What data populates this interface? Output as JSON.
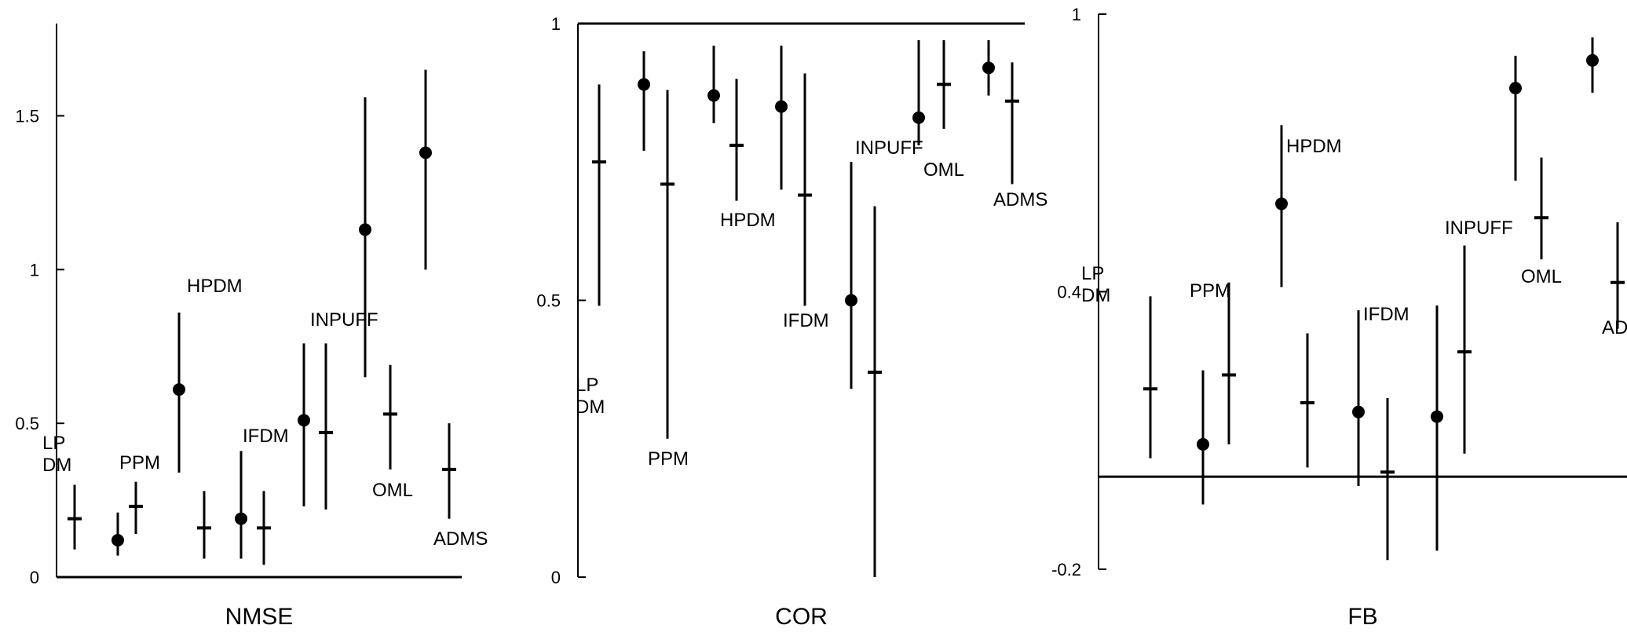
{
  "chart_data": [
    {
      "type": "scatter",
      "xlabel": "NMSE",
      "ylim": [
        0,
        1.8
      ],
      "yticks": [
        {
          "v": 0,
          "label": "0"
        },
        {
          "v": 0.5,
          "label": "0.5"
        },
        {
          "v": 1,
          "label": "1"
        },
        {
          "v": 1.5,
          "label": "1.5"
        }
      ],
      "reference": 0,
      "models": [
        {
          "label": "LP\nDM",
          "dot": null,
          "cross": {
            "v": 0.19,
            "lo": 0.09,
            "hi": 0.3
          }
        },
        {
          "label": "PPM",
          "dot": {
            "v": 0.12,
            "lo": 0.07,
            "hi": 0.21
          },
          "cross": {
            "v": 0.23,
            "lo": 0.14,
            "hi": 0.31
          }
        },
        {
          "label": "HPDM",
          "dot": {
            "v": 0.61,
            "lo": 0.34,
            "hi": 0.86
          },
          "cross": {
            "v": 0.16,
            "lo": 0.06,
            "hi": 0.28
          }
        },
        {
          "label": "IFDM",
          "dot": {
            "v": 0.19,
            "lo": 0.06,
            "hi": 0.41
          },
          "cross": {
            "v": 0.16,
            "lo": 0.04,
            "hi": 0.28
          }
        },
        {
          "label": "INPUFF",
          "dot": {
            "v": 0.51,
            "lo": 0.23,
            "hi": 0.76
          },
          "cross": {
            "v": 0.47,
            "lo": 0.22,
            "hi": 0.76
          }
        },
        {
          "label": "OML",
          "dot": {
            "v": 1.13,
            "lo": 0.65,
            "hi": 1.56
          },
          "cross": {
            "v": 0.53,
            "lo": 0.35,
            "hi": 0.69
          }
        },
        {
          "label": "ADMS",
          "dot": {
            "v": 1.38,
            "lo": 1.0,
            "hi": 1.65
          },
          "cross": {
            "v": 0.35,
            "lo": 0.19,
            "hi": 0.5
          }
        }
      ]
    },
    {
      "type": "scatter",
      "xlabel": "COR",
      "ylim": [
        0,
        1.0
      ],
      "yticks": [
        {
          "v": 0,
          "label": "0"
        },
        {
          "v": 0.5,
          "label": "0.5"
        },
        {
          "v": 1,
          "label": "1"
        }
      ],
      "reference": 1,
      "models": [
        {
          "label": "LP\nDM",
          "dot": null,
          "cross": {
            "v": 0.75,
            "lo": 0.49,
            "hi": 0.89
          }
        },
        {
          "label": "PPM",
          "dot": {
            "v": 0.89,
            "lo": 0.77,
            "hi": 0.95
          },
          "cross": {
            "v": 0.71,
            "lo": 0.25,
            "hi": 0.88
          }
        },
        {
          "label": "HPDM",
          "dot": {
            "v": 0.87,
            "lo": 0.82,
            "hi": 0.96
          },
          "cross": {
            "v": 0.78,
            "lo": 0.68,
            "hi": 0.9
          }
        },
        {
          "label": "IFDM",
          "dot": {
            "v": 0.85,
            "lo": 0.7,
            "hi": 0.96
          },
          "cross": {
            "v": 0.69,
            "lo": 0.49,
            "hi": 0.91
          }
        },
        {
          "label": "INPUFF",
          "dot": {
            "v": 0.5,
            "lo": 0.34,
            "hi": 0.75
          },
          "cross": {
            "v": 0.37,
            "lo": 0.0,
            "hi": 0.67
          }
        },
        {
          "label": "OML",
          "dot": {
            "v": 0.83,
            "lo": 0.78,
            "hi": 0.97
          },
          "cross": {
            "v": 0.89,
            "lo": 0.81,
            "hi": 0.97
          }
        },
        {
          "label": "ADMS",
          "dot": {
            "v": 0.92,
            "lo": 0.87,
            "hi": 0.97
          },
          "cross": {
            "v": 0.86,
            "lo": 0.71,
            "hi": 0.93
          }
        }
      ]
    },
    {
      "type": "scatter",
      "xlabel": "FB",
      "ylim": [
        -0.2,
        1.0
      ],
      "yticks": [
        {
          "v": -0.2,
          "label": "-0.2"
        },
        {
          "v": 0.4,
          "label": "0.4"
        },
        {
          "v": 1,
          "label": "1"
        }
      ],
      "reference": 0,
      "models": [
        {
          "label": "LP\nDM",
          "dot": null,
          "cross": {
            "v": 0.19,
            "lo": 0.04,
            "hi": 0.39
          }
        },
        {
          "label": "PPM",
          "dot": {
            "v": 0.07,
            "lo": -0.06,
            "hi": 0.23
          },
          "cross": {
            "v": 0.22,
            "lo": 0.07,
            "hi": 0.42
          }
        },
        {
          "label": "HPDM",
          "dot": {
            "v": 0.59,
            "lo": 0.41,
            "hi": 0.76
          },
          "cross": {
            "v": 0.16,
            "lo": 0.02,
            "hi": 0.31
          }
        },
        {
          "label": "IFDM",
          "dot": {
            "v": 0.14,
            "lo": -0.02,
            "hi": 0.36
          },
          "cross": {
            "v": 0.01,
            "lo": -0.18,
            "hi": 0.17
          }
        },
        {
          "label": "INPUFF",
          "dot": {
            "v": 0.13,
            "lo": -0.16,
            "hi": 0.37
          },
          "cross": {
            "v": 0.27,
            "lo": 0.05,
            "hi": 0.5
          }
        },
        {
          "label": "OML",
          "dot": {
            "v": 0.84,
            "lo": 0.64,
            "hi": 0.91
          },
          "cross": {
            "v": 0.56,
            "lo": 0.47,
            "hi": 0.69
          }
        },
        {
          "label": "ADMS",
          "dot": {
            "v": 0.9,
            "lo": 0.83,
            "hi": 0.95
          },
          "cross": {
            "v": 0.42,
            "lo": 0.32,
            "hi": 0.55
          }
        }
      ]
    }
  ]
}
